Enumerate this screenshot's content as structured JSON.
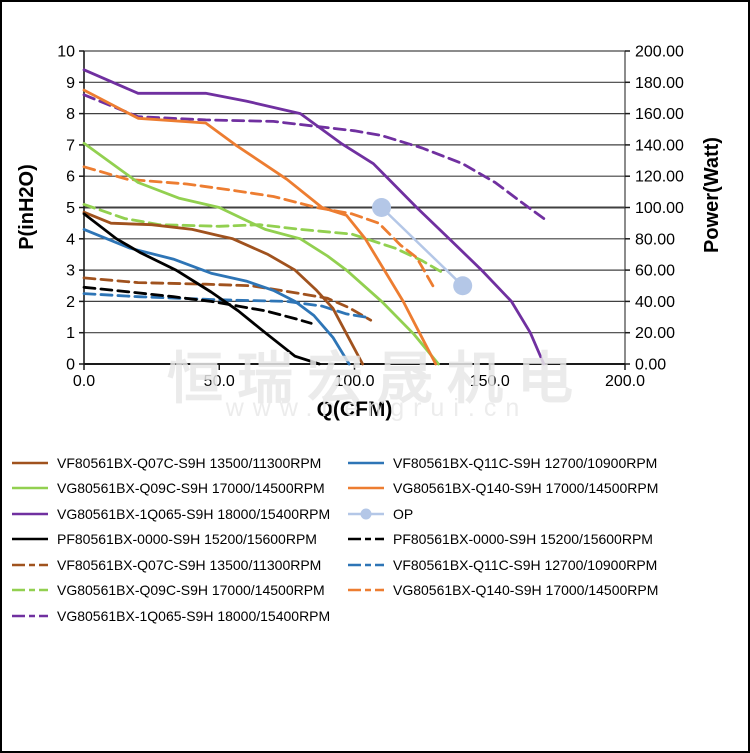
{
  "chart_data": {
    "type": "line",
    "title": "",
    "xlabel": "Q(CFM)",
    "ylabel_left": "P(inH2O)",
    "ylabel_right": "Power(Watt)",
    "xlim": [
      0,
      200
    ],
    "ylim_left": [
      0,
      10
    ],
    "ylim_right": [
      0,
      200
    ],
    "grid": true,
    "legend_position": "bottom",
    "x_ticks": [
      "0.0",
      "50.0",
      "100.0",
      "150.0",
      "200.0"
    ],
    "y_ticks_left": [
      "10",
      "9",
      "8",
      "7",
      "6",
      "5",
      "4",
      "3",
      "2",
      "1",
      "0"
    ],
    "y_ticks_right": [
      "200.00",
      "180.00",
      "160.00",
      "140.00",
      "120.00",
      "100.00",
      "80.00",
      "60.00",
      "40.00",
      "20.00",
      "0.00"
    ],
    "series": [
      {
        "id": "op",
        "name": "OP",
        "axis": "right",
        "style": "marker",
        "color": "#B4C7E7",
        "points": [
          [
            110,
            100
          ],
          [
            140,
            50
          ]
        ]
      },
      {
        "id": "vf-q07c-power",
        "name": "VF80561BX-Q07C-S9H 13500/11300RPM",
        "axis": "right",
        "style": "dash",
        "color": "#A0521E",
        "points": [
          [
            0,
            55
          ],
          [
            20,
            52
          ],
          [
            45,
            51
          ],
          [
            62,
            50
          ],
          [
            80,
            45
          ],
          [
            90,
            42
          ],
          [
            98,
            36
          ],
          [
            106,
            28
          ]
        ]
      },
      {
        "id": "vf-q11c-power",
        "name": "VF80561BX-Q11C-S9H 12700/10900RPM",
        "axis": "right",
        "style": "dash",
        "color": "#2E75B6",
        "points": [
          [
            0,
            45
          ],
          [
            20,
            43
          ],
          [
            50,
            41
          ],
          [
            75,
            40
          ],
          [
            88,
            37
          ],
          [
            97,
            32
          ],
          [
            104,
            30
          ]
        ]
      },
      {
        "id": "vg-q09c-power",
        "name": "VG80561BX-Q09C-S9H 17000/14500RPM",
        "axis": "right",
        "style": "dash",
        "color": "#92D050",
        "points": [
          [
            0,
            102
          ],
          [
            15,
            93
          ],
          [
            28,
            89
          ],
          [
            50,
            88
          ],
          [
            65,
            89
          ],
          [
            80,
            86
          ],
          [
            99,
            83
          ],
          [
            115,
            74
          ],
          [
            125,
            66
          ],
          [
            132,
            59
          ]
        ]
      },
      {
        "id": "vg-q140-power",
        "name": "VG80561BX-Q140-S9H 17000/14500RPM",
        "axis": "right",
        "style": "dash",
        "color": "#ED7D31",
        "points": [
          [
            0,
            126
          ],
          [
            16,
            118
          ],
          [
            38,
            115
          ],
          [
            55,
            111
          ],
          [
            70,
            107
          ],
          [
            86,
            100
          ],
          [
            99,
            96
          ],
          [
            109,
            90
          ],
          [
            117,
            76
          ],
          [
            123,
            68
          ],
          [
            129,
            50
          ]
        ]
      },
      {
        "id": "pf-0000-power",
        "name": "PF80561BX-0000-S9H 15200/15600RPM",
        "axis": "right",
        "style": "dash",
        "color": "#000000",
        "points": [
          [
            0,
            49
          ],
          [
            17,
            46
          ],
          [
            33,
            43
          ],
          [
            47,
            40
          ],
          [
            57,
            37
          ],
          [
            67,
            34
          ],
          [
            78,
            29
          ],
          [
            84,
            26
          ]
        ]
      },
      {
        "id": "vg-1q065-power",
        "name": "VG80561BX-1Q065-S9H 18000/15400RPM",
        "axis": "right",
        "style": "dash",
        "color": "#7030A0",
        "points": [
          [
            0,
            172
          ],
          [
            20,
            158
          ],
          [
            45,
            156
          ],
          [
            70,
            155
          ],
          [
            85,
            152
          ],
          [
            100,
            149
          ],
          [
            110,
            146
          ],
          [
            125,
            138
          ],
          [
            140,
            128
          ],
          [
            152,
            116
          ],
          [
            162,
            103
          ],
          [
            170,
            93
          ]
        ]
      },
      {
        "id": "vf-q07c",
        "name": "VF80561BX-Q07C-S9H 13500/11300RPM",
        "axis": "left",
        "style": "solid",
        "color": "#A0521E",
        "points": [
          [
            0,
            4.85
          ],
          [
            10,
            4.5
          ],
          [
            25,
            4.45
          ],
          [
            40,
            4.3
          ],
          [
            50,
            4.1
          ],
          [
            55,
            4.0
          ],
          [
            68,
            3.5
          ],
          [
            78,
            3.0
          ],
          [
            86,
            2.35
          ],
          [
            92,
            1.78
          ],
          [
            103,
            0
          ]
        ]
      },
      {
        "id": "vf-q11c",
        "name": "VF80561BX-Q11C-S9H 12700/10900RPM",
        "axis": "left",
        "style": "solid",
        "color": "#2E75B6",
        "points": [
          [
            0,
            4.3
          ],
          [
            17,
            3.7
          ],
          [
            33,
            3.35
          ],
          [
            47,
            2.9
          ],
          [
            60,
            2.65
          ],
          [
            70,
            2.35
          ],
          [
            78,
            2.0
          ],
          [
            85,
            1.55
          ],
          [
            92,
            0.85
          ],
          [
            98,
            0
          ]
        ]
      },
      {
        "id": "vg-q09c",
        "name": "VG80561BX-Q09C-S9H 17000/14500RPM",
        "axis": "left",
        "style": "solid",
        "color": "#92D050",
        "points": [
          [
            0,
            7.05
          ],
          [
            20,
            5.8
          ],
          [
            35,
            5.3
          ],
          [
            50,
            5.0
          ],
          [
            67,
            4.3
          ],
          [
            80,
            4.0
          ],
          [
            90,
            3.45
          ],
          [
            97,
            3.0
          ],
          [
            110,
            2.0
          ],
          [
            122,
            0.95
          ],
          [
            131,
            0
          ]
        ]
      },
      {
        "id": "vg-q140",
        "name": "VG80561BX-Q140-S9H 17000/14500RPM",
        "axis": "left",
        "style": "solid",
        "color": "#ED7D31",
        "points": [
          [
            0,
            8.75
          ],
          [
            20,
            7.85
          ],
          [
            45,
            7.7
          ],
          [
            56,
            7.0
          ],
          [
            75,
            5.9
          ],
          [
            88,
            5.0
          ],
          [
            97,
            4.75
          ],
          [
            104,
            4.0
          ],
          [
            111,
            3.0
          ],
          [
            118,
            2.0
          ],
          [
            124,
            1.0
          ],
          [
            130,
            0
          ]
        ]
      },
      {
        "id": "pf-0000",
        "name": "PF80561BX-0000-S9H 15200/15600RPM",
        "axis": "left",
        "style": "solid",
        "color": "#000000",
        "points": [
          [
            0,
            4.8
          ],
          [
            12,
            4.0
          ],
          [
            21,
            3.55
          ],
          [
            34,
            3.0
          ],
          [
            47,
            2.3
          ],
          [
            57,
            1.7
          ],
          [
            67,
            1.0
          ],
          [
            78,
            0.25
          ],
          [
            87,
            0
          ]
        ]
      },
      {
        "id": "vg-1q065",
        "name": "VG80561BX-1Q065-S9H 18000/15400RPM",
        "axis": "left",
        "style": "solid",
        "color": "#7030A0",
        "points": [
          [
            0,
            9.4
          ],
          [
            20,
            8.65
          ],
          [
            45,
            8.65
          ],
          [
            60,
            8.4
          ],
          [
            80,
            8.0
          ],
          [
            95,
            7.05
          ],
          [
            107,
            6.4
          ],
          [
            115,
            5.7
          ],
          [
            123,
            5.0
          ],
          [
            135,
            4.0
          ],
          [
            147,
            3.0
          ],
          [
            158,
            2.0
          ],
          [
            165,
            1.0
          ],
          [
            170,
            0
          ]
        ]
      }
    ]
  },
  "legend": {
    "items": [
      {
        "label": "VF80561BX-Q07C-S9H 13500/11300RPM",
        "color": "#A0521E",
        "style": "solid"
      },
      {
        "label": "VF80561BX-Q11C-S9H 12700/10900RPM",
        "color": "#2E75B6",
        "style": "solid"
      },
      {
        "label": "VG80561BX-Q09C-S9H 17000/14500RPM",
        "color": "#92D050",
        "style": "solid"
      },
      {
        "label": "VG80561BX-Q140-S9H 17000/14500RPM",
        "color": "#ED7D31",
        "style": "solid"
      },
      {
        "label": "VG80561BX-1Q065-S9H 18000/15400RPM",
        "color": "#7030A0",
        "style": "solid"
      },
      {
        "label": "OP",
        "color": "#B4C7E7",
        "style": "marker"
      },
      {
        "label": "PF80561BX-0000-S9H 15200/15600RPM",
        "color": "#000000",
        "style": "solid"
      },
      {
        "label": "PF80561BX-0000-S9H 15200/15600RPM",
        "color": "#000000",
        "style": "dash"
      },
      {
        "label": "VF80561BX-Q07C-S9H 13500/11300RPM",
        "color": "#A0521E",
        "style": "dash"
      },
      {
        "label": "VF80561BX-Q11C-S9H 12700/10900RPM",
        "color": "#2E75B6",
        "style": "dash"
      },
      {
        "label": "VG80561BX-Q09C-S9H 17000/14500RPM",
        "color": "#92D050",
        "style": "dash"
      },
      {
        "label": "VG80561BX-Q140-S9H 17000/14500RPM",
        "color": "#ED7D31",
        "style": "dash"
      },
      {
        "label": "VG80561BX-1Q065-S9H 18000/15400RPM",
        "color": "#7030A0",
        "style": "dash"
      }
    ]
  },
  "watermark": {
    "line1": "恒瑞宏晟机电",
    "line2": "www.hengrui.cn"
  },
  "colors": {
    "grid": "#404040",
    "axis": "#1a1a1a",
    "tick_label": "#000000"
  }
}
